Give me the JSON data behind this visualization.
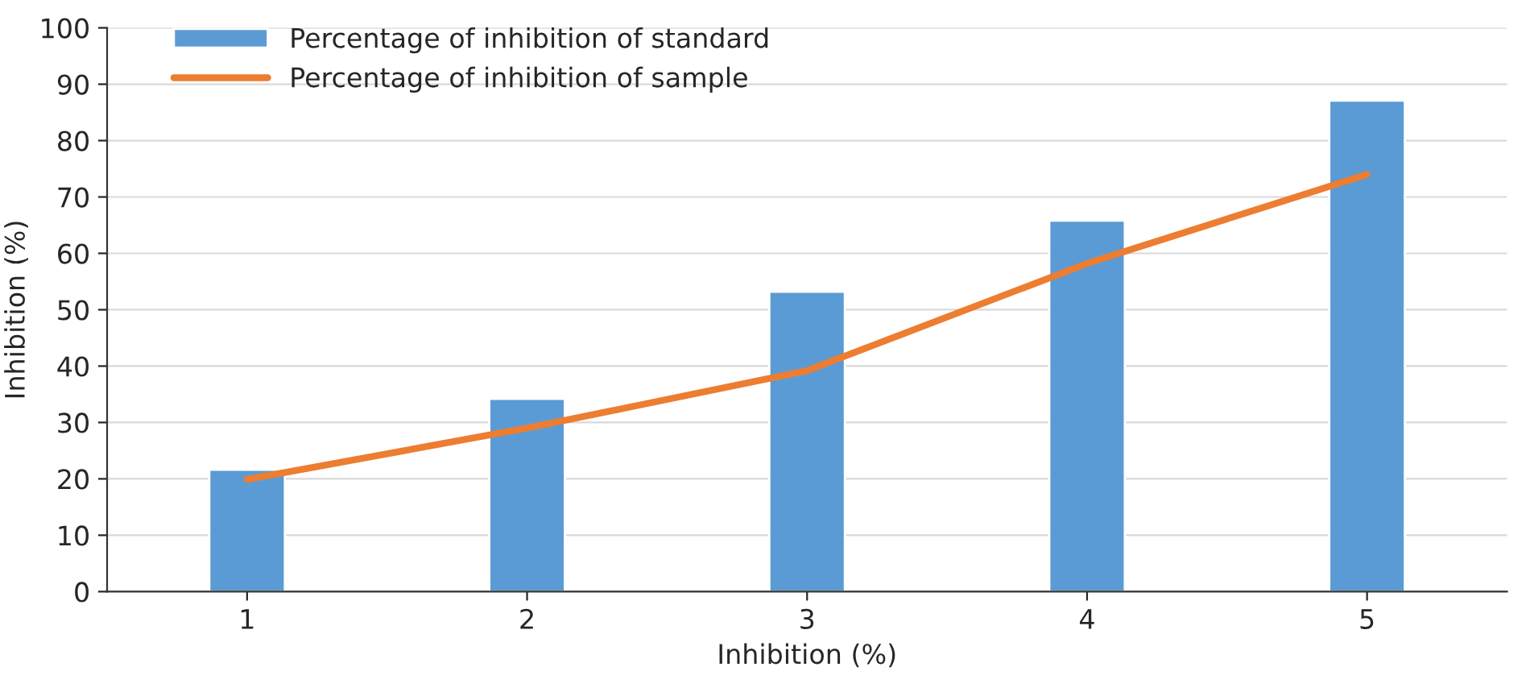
{
  "chart_data": {
    "type": "bar",
    "xlabel": "Inhibition (%)",
    "ylabel": "Inhibition (%)",
    "categories": [
      "1",
      "2",
      "3",
      "4",
      "5"
    ],
    "series": [
      {
        "name": "Percentage of inhibition of standard",
        "color": "#5b9bd5",
        "values": [
          21.6,
          34.2,
          53.2,
          65.8,
          87.1
        ]
      },
      {
        "name": "Percentage of inhibition of sample",
        "type": "line",
        "color": "#ed7d31",
        "values": [
          19.9,
          29,
          39.2,
          58.2,
          74
        ]
      }
    ],
    "ylim": [
      0,
      100
    ],
    "yticks": [
      0,
      10,
      20,
      30,
      40,
      50,
      60,
      70,
      80,
      90,
      100
    ],
    "grid": "y",
    "legend": "top left"
  }
}
